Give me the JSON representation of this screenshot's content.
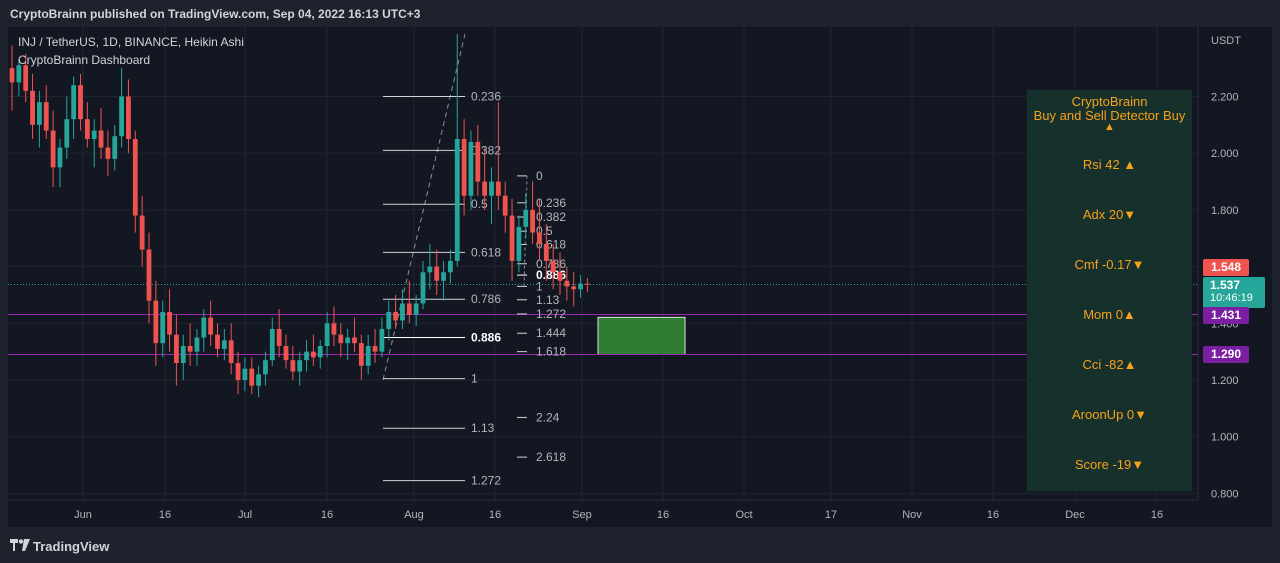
{
  "header": {
    "text": "CryptoBrainn published on TradingView.com, Sep 04, 2022 16:13 UTC+3"
  },
  "legend": {
    "symbol": "INJ / TetherUS, 1D, BINANCE, Heikin Ashi",
    "indicator": "CryptoBrainn Dashboard"
  },
  "footer": {
    "brand": "TradingView"
  },
  "colors": {
    "up": "#26a69a",
    "down": "#ef5350",
    "purple": "#9c27b0",
    "zone": "#2e7d32",
    "dash_text": "#f7a21b"
  },
  "price_labels": {
    "current": "1.537",
    "countdown": "10:46:19",
    "red": "1.548",
    "purple_upper": "1.431",
    "purple_lower": "1.290"
  },
  "dashboard": {
    "title_line1": "CryptoBrainn",
    "title_line2": "Buy and Sell Detector  Buy",
    "title_arrow": "▲",
    "rows": [
      {
        "text": "Rsi  42 ▲"
      },
      {
        "text": "Adx  20▼"
      },
      {
        "text": "Cmf -0.17▼"
      },
      {
        "text": "Mom   0▲"
      },
      {
        "text": "Cci     -82▲"
      },
      {
        "text": "AroonUp  0▼"
      },
      {
        "text": "Score  -19▼"
      }
    ]
  },
  "chart_data": {
    "type": "candlestick",
    "style": "Heikin Ashi",
    "symbol": "INJ / TetherUS",
    "timeframe": "1D",
    "exchange": "BINANCE",
    "y_axis": {
      "unit": "USDT",
      "ticks": [
        "2.200",
        "2.000",
        "1.800",
        "1.600",
        "1.400",
        "1.200",
        "1.000",
        "0.800"
      ],
      "range": [
        0.79,
        2.42
      ]
    },
    "x_axis": {
      "ticks": [
        "Jun",
        "16",
        "Jul",
        "16",
        "Aug",
        "16",
        "Sep",
        "16",
        "Oct",
        "17",
        "Nov",
        "16",
        "Dec",
        "16"
      ]
    },
    "horizontal_lines": [
      1.431,
      1.29
    ],
    "last_price": 1.537,
    "target_zone": {
      "from": 1.29,
      "to": 1.421
    },
    "fib_large": {
      "anchor_high": 2.42,
      "anchor_low": 1.2,
      "levels": [
        {
          "label": "0.236",
          "price": 2.2
        },
        {
          "label": "0.382",
          "price": 2.01
        },
        {
          "label": "0.5",
          "price": 1.82
        },
        {
          "label": "0.618",
          "price": 1.65
        },
        {
          "label": "0.786",
          "price": 1.485
        },
        {
          "label": "0.886",
          "price": 1.35,
          "emphasis": true
        },
        {
          "label": "1",
          "price": 1.205
        },
        {
          "label": "1.13",
          "price": 1.03
        },
        {
          "label": "1.272",
          "price": 0.845
        }
      ]
    },
    "fib_small": {
      "levels": [
        {
          "label": "0",
          "price": 1.92
        },
        {
          "label": "0.236",
          "price": 1.825
        },
        {
          "label": "0.382",
          "price": 1.775
        },
        {
          "label": "0.5",
          "price": 1.725
        },
        {
          "label": "0.618",
          "price": 1.678
        },
        {
          "label": "0.786",
          "price": 1.61
        },
        {
          "label": "0.886",
          "price": 1.57,
          "emphasis": true
        },
        {
          "label": "1",
          "price": 1.53
        },
        {
          "label": "1.13",
          "price": 1.483
        },
        {
          "label": "1.272",
          "price": 1.433
        },
        {
          "label": "1.444",
          "price": 1.365
        },
        {
          "label": "1.618",
          "price": 1.3
        },
        {
          "label": "2.24",
          "price": 1.068
        },
        {
          "label": "2.618",
          "price": 0.928
        }
      ]
    },
    "candles": [
      {
        "o": 2.3,
        "h": 2.38,
        "l": 2.15,
        "c": 2.25
      },
      {
        "o": 2.25,
        "h": 2.33,
        "l": 2.2,
        "c": 2.31
      },
      {
        "o": 2.31,
        "h": 2.35,
        "l": 2.18,
        "c": 2.22
      },
      {
        "o": 2.22,
        "h": 2.28,
        "l": 2.05,
        "c": 2.1
      },
      {
        "o": 2.1,
        "h": 2.22,
        "l": 2.02,
        "c": 2.18
      },
      {
        "o": 2.18,
        "h": 2.24,
        "l": 2.05,
        "c": 2.08
      },
      {
        "o": 2.08,
        "h": 2.15,
        "l": 1.88,
        "c": 1.95
      },
      {
        "o": 1.95,
        "h": 2.05,
        "l": 1.88,
        "c": 2.02
      },
      {
        "o": 2.02,
        "h": 2.2,
        "l": 1.98,
        "c": 2.12
      },
      {
        "o": 2.12,
        "h": 2.27,
        "l": 2.05,
        "c": 2.24
      },
      {
        "o": 2.24,
        "h": 2.28,
        "l": 2.08,
        "c": 2.12
      },
      {
        "o": 2.12,
        "h": 2.18,
        "l": 2.02,
        "c": 2.05
      },
      {
        "o": 2.05,
        "h": 2.12,
        "l": 1.95,
        "c": 2.08
      },
      {
        "o": 2.08,
        "h": 2.16,
        "l": 1.98,
        "c": 2.02
      },
      {
        "o": 2.02,
        "h": 2.08,
        "l": 1.92,
        "c": 1.98
      },
      {
        "o": 1.98,
        "h": 2.1,
        "l": 1.94,
        "c": 2.06
      },
      {
        "o": 2.06,
        "h": 2.3,
        "l": 2.02,
        "c": 2.2
      },
      {
        "o": 2.2,
        "h": 2.26,
        "l": 2.0,
        "c": 2.05
      },
      {
        "o": 2.05,
        "h": 2.08,
        "l": 1.72,
        "c": 1.78
      },
      {
        "o": 1.78,
        "h": 1.85,
        "l": 1.6,
        "c": 1.66
      },
      {
        "o": 1.66,
        "h": 1.72,
        "l": 1.4,
        "c": 1.48
      },
      {
        "o": 1.48,
        "h": 1.55,
        "l": 1.25,
        "c": 1.33
      },
      {
        "o": 1.33,
        "h": 1.48,
        "l": 1.28,
        "c": 1.44
      },
      {
        "o": 1.44,
        "h": 1.52,
        "l": 1.3,
        "c": 1.36
      },
      {
        "o": 1.36,
        "h": 1.43,
        "l": 1.18,
        "c": 1.26
      },
      {
        "o": 1.26,
        "h": 1.36,
        "l": 1.2,
        "c": 1.32
      },
      {
        "o": 1.32,
        "h": 1.4,
        "l": 1.25,
        "c": 1.3
      },
      {
        "o": 1.3,
        "h": 1.38,
        "l": 1.25,
        "c": 1.35
      },
      {
        "o": 1.35,
        "h": 1.45,
        "l": 1.3,
        "c": 1.42
      },
      {
        "o": 1.42,
        "h": 1.48,
        "l": 1.32,
        "c": 1.36
      },
      {
        "o": 1.36,
        "h": 1.4,
        "l": 1.28,
        "c": 1.31
      },
      {
        "o": 1.31,
        "h": 1.38,
        "l": 1.27,
        "c": 1.34
      },
      {
        "o": 1.34,
        "h": 1.4,
        "l": 1.22,
        "c": 1.26
      },
      {
        "o": 1.26,
        "h": 1.3,
        "l": 1.15,
        "c": 1.2
      },
      {
        "o": 1.2,
        "h": 1.28,
        "l": 1.16,
        "c": 1.24
      },
      {
        "o": 1.24,
        "h": 1.28,
        "l": 1.15,
        "c": 1.18
      },
      {
        "o": 1.18,
        "h": 1.25,
        "l": 1.14,
        "c": 1.22
      },
      {
        "o": 1.22,
        "h": 1.3,
        "l": 1.18,
        "c": 1.27
      },
      {
        "o": 1.27,
        "h": 1.42,
        "l": 1.25,
        "c": 1.38
      },
      {
        "o": 1.38,
        "h": 1.45,
        "l": 1.28,
        "c": 1.32
      },
      {
        "o": 1.32,
        "h": 1.36,
        "l": 1.24,
        "c": 1.27
      },
      {
        "o": 1.27,
        "h": 1.32,
        "l": 1.2,
        "c": 1.23
      },
      {
        "o": 1.23,
        "h": 1.3,
        "l": 1.18,
        "c": 1.27
      },
      {
        "o": 1.27,
        "h": 1.34,
        "l": 1.23,
        "c": 1.3
      },
      {
        "o": 1.3,
        "h": 1.36,
        "l": 1.25,
        "c": 1.28
      },
      {
        "o": 1.28,
        "h": 1.34,
        "l": 1.24,
        "c": 1.32
      },
      {
        "o": 1.32,
        "h": 1.44,
        "l": 1.28,
        "c": 1.4
      },
      {
        "o": 1.4,
        "h": 1.46,
        "l": 1.32,
        "c": 1.36
      },
      {
        "o": 1.36,
        "h": 1.4,
        "l": 1.28,
        "c": 1.33
      },
      {
        "o": 1.33,
        "h": 1.38,
        "l": 1.27,
        "c": 1.35
      },
      {
        "o": 1.35,
        "h": 1.42,
        "l": 1.3,
        "c": 1.33
      },
      {
        "o": 1.33,
        "h": 1.36,
        "l": 1.2,
        "c": 1.25
      },
      {
        "o": 1.25,
        "h": 1.36,
        "l": 1.22,
        "c": 1.32
      },
      {
        "o": 1.32,
        "h": 1.38,
        "l": 1.26,
        "c": 1.3
      },
      {
        "o": 1.3,
        "h": 1.42,
        "l": 1.28,
        "c": 1.38
      },
      {
        "o": 1.38,
        "h": 1.48,
        "l": 1.34,
        "c": 1.44
      },
      {
        "o": 1.44,
        "h": 1.5,
        "l": 1.38,
        "c": 1.41
      },
      {
        "o": 1.41,
        "h": 1.52,
        "l": 1.38,
        "c": 1.47
      },
      {
        "o": 1.47,
        "h": 1.55,
        "l": 1.4,
        "c": 1.43
      },
      {
        "o": 1.43,
        "h": 1.5,
        "l": 1.39,
        "c": 1.47
      },
      {
        "o": 1.47,
        "h": 1.62,
        "l": 1.45,
        "c": 1.58
      },
      {
        "o": 1.58,
        "h": 1.68,
        "l": 1.52,
        "c": 1.6
      },
      {
        "o": 1.6,
        "h": 1.66,
        "l": 1.5,
        "c": 1.55
      },
      {
        "o": 1.55,
        "h": 1.62,
        "l": 1.48,
        "c": 1.58
      },
      {
        "o": 1.58,
        "h": 1.66,
        "l": 1.54,
        "c": 1.62
      },
      {
        "o": 1.62,
        "h": 2.42,
        "l": 1.6,
        "c": 2.05
      },
      {
        "o": 2.05,
        "h": 2.12,
        "l": 1.78,
        "c": 1.85
      },
      {
        "o": 1.85,
        "h": 2.08,
        "l": 1.8,
        "c": 2.04
      },
      {
        "o": 2.04,
        "h": 2.1,
        "l": 1.85,
        "c": 1.9
      },
      {
        "o": 1.9,
        "h": 2.02,
        "l": 1.8,
        "c": 1.85
      },
      {
        "o": 1.85,
        "h": 1.95,
        "l": 1.75,
        "c": 1.9
      },
      {
        "o": 1.9,
        "h": 2.18,
        "l": 1.8,
        "c": 1.85
      },
      {
        "o": 1.85,
        "h": 1.9,
        "l": 1.72,
        "c": 1.78
      },
      {
        "o": 1.78,
        "h": 1.84,
        "l": 1.55,
        "c": 1.62
      },
      {
        "o": 1.62,
        "h": 1.78,
        "l": 1.58,
        "c": 1.74
      },
      {
        "o": 1.74,
        "h": 1.86,
        "l": 1.7,
        "c": 1.8
      },
      {
        "o": 1.8,
        "h": 1.9,
        "l": 1.68,
        "c": 1.72
      },
      {
        "o": 1.72,
        "h": 1.84,
        "l": 1.62,
        "c": 1.68
      },
      {
        "o": 1.68,
        "h": 1.75,
        "l": 1.55,
        "c": 1.62
      },
      {
        "o": 1.62,
        "h": 1.68,
        "l": 1.52,
        "c": 1.58
      },
      {
        "o": 1.58,
        "h": 1.65,
        "l": 1.5,
        "c": 1.55
      },
      {
        "o": 1.55,
        "h": 1.6,
        "l": 1.48,
        "c": 1.53
      },
      {
        "o": 1.53,
        "h": 1.58,
        "l": 1.46,
        "c": 1.52
      },
      {
        "o": 1.52,
        "h": 1.57,
        "l": 1.49,
        "c": 1.54
      },
      {
        "o": 1.54,
        "h": 1.56,
        "l": 1.51,
        "c": 1.537
      }
    ]
  }
}
